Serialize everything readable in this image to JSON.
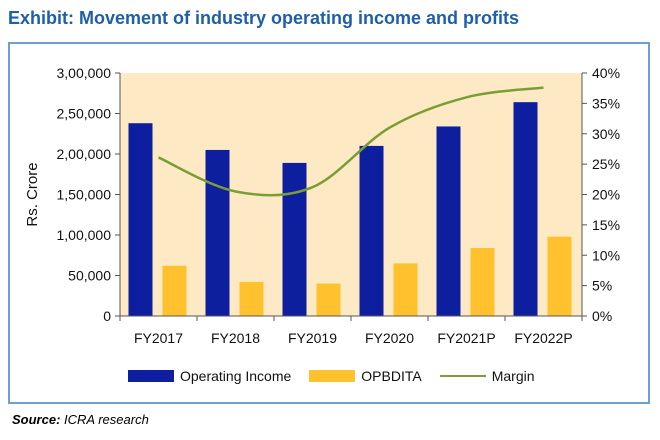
{
  "header": {
    "title": "Exhibit: Movement of industry operating income and profits"
  },
  "footer": {
    "source_label": "Source:",
    "source_text": "ICRA research"
  },
  "colors": {
    "title": "#1f5fa8",
    "plot_background": "#fdeac4",
    "operating_income": "#0d1f9e",
    "opbdita": "#ffc12e",
    "margin": "#7a9e35",
    "frame": "#6f9fd0"
  },
  "chart_data": {
    "type": "bar",
    "title": "Exhibit: Movement of industry operating income and profits",
    "ylabel": "Rs. Crore",
    "xlabel": "",
    "categories": [
      "FY2017",
      "FY2018",
      "FY2019",
      "FY2020",
      "FY2021P",
      "FY2022P"
    ],
    "ylim": [
      0,
      300000
    ],
    "y_ticks": [
      0,
      50000,
      100000,
      150000,
      200000,
      250000,
      300000
    ],
    "y_tick_labels": [
      "0",
      "50,000",
      "1,00,000",
      "1,50,000",
      "2,00,000",
      "2,50,000",
      "3,00,000"
    ],
    "y2lim": [
      0,
      40
    ],
    "y2_ticks": [
      0,
      5,
      10,
      15,
      20,
      25,
      30,
      35,
      40
    ],
    "y2_tick_labels": [
      "0%",
      "5%",
      "10%",
      "15%",
      "20%",
      "25%",
      "30%",
      "35%",
      "40%"
    ],
    "series": [
      {
        "name": "Operating Income",
        "type": "bar",
        "axis": "left",
        "values": [
          238000,
          205000,
          189000,
          210000,
          234000,
          264000
        ]
      },
      {
        "name": "OPBDITA",
        "type": "bar",
        "axis": "left",
        "values": [
          62000,
          42000,
          40000,
          65000,
          84000,
          98000
        ]
      },
      {
        "name": "Margin",
        "type": "line",
        "axis": "right",
        "values": [
          26.1,
          20.5,
          21.2,
          31.0,
          36.0,
          37.6
        ]
      }
    ],
    "legend": [
      "Operating Income",
      "OPBDITA",
      "Margin"
    ],
    "legend_position": "bottom",
    "grid": false
  }
}
